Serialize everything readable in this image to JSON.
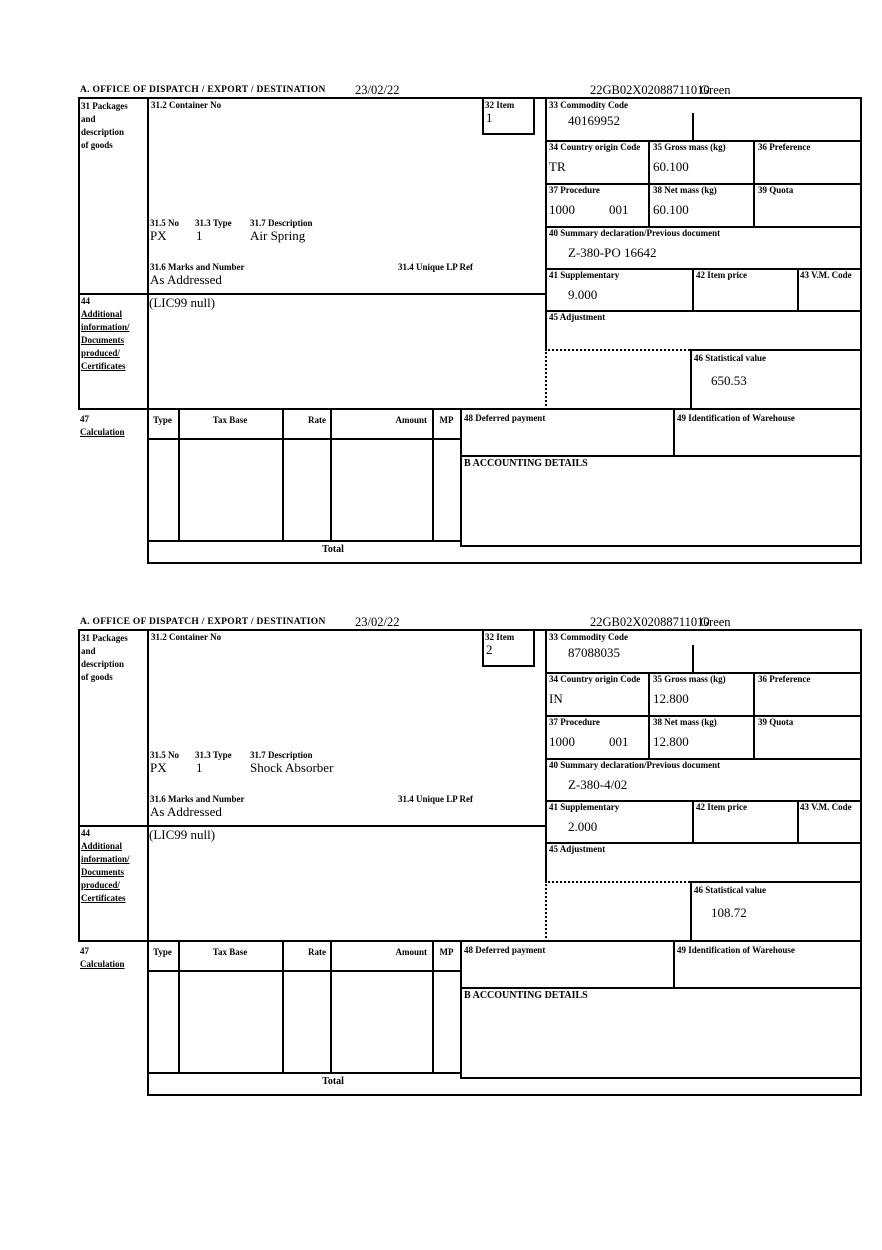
{
  "header": {
    "section_label": "A.  OFFICE OF DISPATCH / EXPORT / DESTINATION",
    "date": "23/02/22",
    "entry_number": "22GB02X02088711010",
    "routing": "Green"
  },
  "labels": {
    "box31_lines": [
      "31 Packages",
      "and",
      "description",
      "of goods"
    ],
    "box31_2": "31.2 Container No",
    "box32": "32 Item",
    "box33": "33 Commodity Code",
    "box34": "34 Country origin Code",
    "box35": "35 Gross mass (kg)",
    "box36": "36 Preference",
    "box37": "37 Procedure",
    "box38": "38 Net mass (kg)",
    "box39": "39 Quota",
    "box40": "40 Summary declaration/Previous document",
    "box41": "41 Supplementary",
    "box42": "42 Item price",
    "box43": "43 V.M. Code",
    "box44_no": "44",
    "box44_lines": [
      "Additional",
      "information/",
      "Documents",
      "produced/",
      "Certificates"
    ],
    "box45": "45 Adjustment",
    "box46": "46 Statistical value",
    "box47_no": "47",
    "box47_name": "Calculation",
    "box31_5": "31.5 No",
    "box31_3": "31.3 Type",
    "box31_7": "31.7 Description",
    "box31_6": "31.6 Marks and Number",
    "box31_4": "31.4 Unique LP Ref",
    "calc_headers": [
      "Type",
      "Tax Base",
      "Rate",
      "Amount",
      "MP"
    ],
    "box48": "48 Deferred payment",
    "box49": "49 Identification of Warehouse",
    "accounting": "B ACCOUNTING DETAILS",
    "total": "Total"
  },
  "items": [
    {
      "item_no": "1",
      "commodity_code": "40169952",
      "country_origin_code": "TR",
      "gross_mass_kg": "60.100",
      "procedure_1": "1000",
      "procedure_2": "001",
      "net_mass_kg": "60.100",
      "summary_declaration": "Z-380-PO 16642",
      "supplementary_units": "9.000",
      "statistical_value": "650.53",
      "package_no": "PX",
      "package_type": "1",
      "description": "Air Spring",
      "marks_and_number": "As Addressed",
      "additional_information": "(LIC99 null)"
    },
    {
      "item_no": "2",
      "commodity_code": "87088035",
      "country_origin_code": "IN",
      "gross_mass_kg": "12.800",
      "procedure_1": "1000",
      "procedure_2": "001",
      "net_mass_kg": "12.800",
      "summary_declaration": "Z-380-4/02",
      "supplementary_units": "2.000",
      "statistical_value": "108.72",
      "package_no": "PX",
      "package_type": "1",
      "description": "Shock Absorber",
      "marks_and_number": "As Addressed",
      "additional_information": "(LIC99 null)"
    }
  ]
}
